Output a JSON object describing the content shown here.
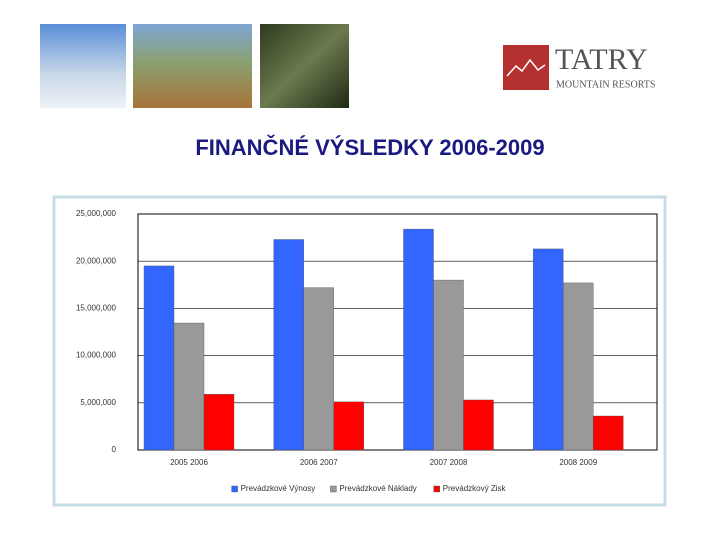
{
  "logo": {
    "name": "TATRY",
    "subtitle": "MOUNTAIN RESORTS"
  },
  "chart_data": {
    "type": "bar",
    "title": "FINANČNÉ VÝSLEDKY 2006-2009",
    "categories": [
      "2005 2006",
      "2006 2007",
      "2007 2008",
      "2008 2009"
    ],
    "series": [
      {
        "name": "Prevádzkové Výnosy",
        "color": "#3366ff",
        "values": [
          19500000,
          22300000,
          23400000,
          21300000
        ]
      },
      {
        "name": "Prevádzkové Náklady",
        "color": "#999999",
        "values": [
          13450000,
          17200000,
          18000000,
          17700000
        ]
      },
      {
        "name": "Prevádzkový Zisk",
        "color": "#ff0000",
        "values": [
          5900000,
          5100000,
          5300000,
          3600000
        ]
      }
    ],
    "ylim": [
      0,
      25000000
    ],
    "yticks": [
      0,
      {
        "value": 5000000,
        "label": "5,000,000"
      },
      {
        "value": 10000000,
        "label": "10,000,000"
      },
      {
        "value": 15000000,
        "label": "15,000,000"
      },
      {
        "value": 20000000,
        "label": "20,000,000"
      },
      {
        "value": 25000000,
        "label": "25,000,000"
      }
    ],
    "grid": true,
    "legend": "bottom"
  }
}
